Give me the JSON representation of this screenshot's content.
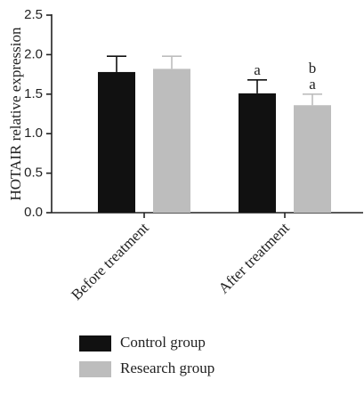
{
  "chart_data": {
    "type": "bar",
    "ylabel": "HOTAIR relative expression",
    "xlabel": "",
    "title": "",
    "ylim": [
      0,
      2.5
    ],
    "yticks": [
      "0.0",
      "0.5",
      "1.0",
      "1.5",
      "2.0",
      "2.5"
    ],
    "categories": [
      "Before treatment",
      "After treatment"
    ],
    "series": [
      {
        "name": "Control group",
        "color": "#111111",
        "values": [
          1.78,
          1.51
        ],
        "errors": [
          0.2,
          0.17
        ]
      },
      {
        "name": "Research group",
        "color": "#bdbdbd",
        "values": [
          1.82,
          1.36
        ],
        "errors": [
          0.16,
          0.14
        ]
      }
    ],
    "annotations": [
      {
        "category": "After treatment",
        "series": "Control group",
        "labels": [
          "a"
        ]
      },
      {
        "category": "After treatment",
        "series": "Research group",
        "labels": [
          "b",
          "a"
        ]
      }
    ],
    "legend_position": "bottom",
    "grid": false
  }
}
